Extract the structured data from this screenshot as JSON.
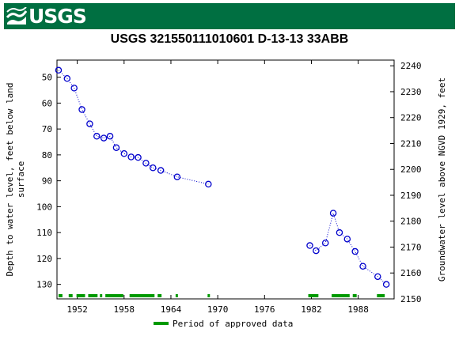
{
  "header": {
    "logo_text": "USGS",
    "bar_color": "#006f41",
    "logo_icon": "usgs-wave-icon"
  },
  "chart_data": {
    "type": "scatter",
    "title": "USGS 321550111010601 D-13-13 33ABB",
    "ylabel_left": "Depth to water level, feet below land surface",
    "ylabel_left_lines": [
      "Depth to water level, feet below land",
      "surface"
    ],
    "ylabel_right": "Groundwater level above NGVD 1929, feet",
    "x_ticks": [
      1952,
      1958,
      1964,
      1970,
      1976,
      1982,
      1988
    ],
    "xlim": [
      1949.4,
      1992.6
    ],
    "y_left_ticks": [
      50,
      60,
      70,
      80,
      90,
      100,
      110,
      120,
      130
    ],
    "y_left_lim": [
      43.4,
      135.6
    ],
    "y_left_inverted": true,
    "y_right_ticks": [
      2150,
      2160,
      2170,
      2180,
      2190,
      2200,
      2210,
      2220,
      2230,
      2240
    ],
    "y_right_lim": [
      2150,
      2242.2
    ],
    "series": [
      {
        "marker": "open-circle",
        "color": "#0000cc",
        "line_style": "dotted",
        "points": [
          [
            1949.6,
            47.3
          ],
          [
            1950.7,
            50.5
          ],
          [
            1951.6,
            54.2
          ],
          [
            1952.6,
            62.5
          ],
          [
            1953.6,
            68.0
          ],
          [
            1954.5,
            72.8
          ],
          [
            1955.4,
            73.5
          ],
          [
            1956.2,
            72.8
          ],
          [
            1957.0,
            77.2
          ],
          [
            1958.0,
            79.5
          ],
          [
            1958.9,
            80.8
          ],
          [
            1959.8,
            81.0
          ],
          [
            1960.8,
            83.2
          ],
          [
            1961.7,
            85.0
          ],
          [
            1962.7,
            86.0
          ],
          [
            1964.8,
            88.5
          ],
          [
            1968.8,
            91.3
          ],
          [
            1981.8,
            115.0
          ],
          [
            1982.6,
            117.0
          ],
          [
            1983.8,
            114.0
          ],
          [
            1984.8,
            102.5
          ],
          [
            1985.6,
            110.0
          ],
          [
            1986.6,
            112.5
          ],
          [
            1987.6,
            117.3
          ],
          [
            1988.6,
            123.0
          ],
          [
            1990.5,
            127.0
          ],
          [
            1991.6,
            130.0
          ]
        ]
      }
    ],
    "approved_periods": [
      [
        1949.6,
        1950.1
      ],
      [
        1950.9,
        1951.4
      ],
      [
        1951.9,
        1953.0
      ],
      [
        1953.4,
        1954.6
      ],
      [
        1954.9,
        1955.2
      ],
      [
        1955.6,
        1957.9
      ],
      [
        1958.7,
        1961.9
      ],
      [
        1962.3,
        1962.8
      ],
      [
        1964.6,
        1964.9
      ],
      [
        1968.7,
        1969.0
      ],
      [
        1981.6,
        1982.9
      ],
      [
        1984.6,
        1986.9
      ],
      [
        1987.3,
        1987.8
      ],
      [
        1990.4,
        1991.4
      ]
    ],
    "approved_color": "#009900",
    "legend": {
      "label": "Period of approved data",
      "position": "bottom-center"
    }
  }
}
